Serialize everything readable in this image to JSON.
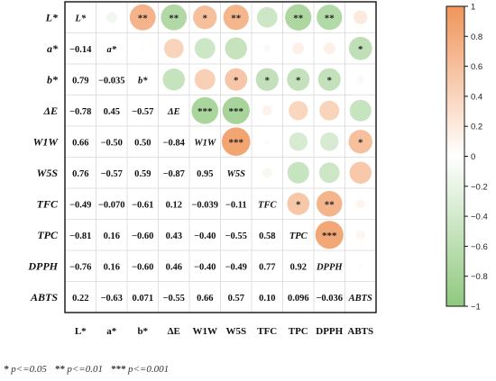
{
  "chart_data": {
    "type": "heatmap",
    "variables": [
      "L*",
      "a*",
      "b*",
      "ΔE",
      "W1W",
      "W5S",
      "TFC",
      "TPC",
      "DPPH",
      "ABTS"
    ],
    "axis_labels": [
      "L*",
      "a*",
      "b*",
      "ΔE",
      "W1W",
      "W5S",
      "TFC",
      "TPC",
      "DPPH",
      "ABTS"
    ],
    "lower_triangle": [
      {
        "row": "a*",
        "values": [
          "−0.14"
        ]
      },
      {
        "row": "b*",
        "values": [
          "0.79",
          "−0.035"
        ]
      },
      {
        "row": "ΔE",
        "values": [
          "−0.78",
          "0.45",
          "−0.57"
        ]
      },
      {
        "row": "W1W",
        "values": [
          "0.66",
          "−0.50",
          "0.50",
          "−0.84"
        ]
      },
      {
        "row": "W5S",
        "values": [
          "0.76",
          "−0.57",
          "0.59",
          "−0.87",
          "0.95"
        ]
      },
      {
        "row": "TFC",
        "values": [
          "−0.49",
          "−0.070",
          "−0.61",
          "0.12",
          "−0.039",
          "−0.11"
        ]
      },
      {
        "row": "TPC",
        "values": [
          "−0.81",
          "0.16",
          "−0.60",
          "0.43",
          "−0.40",
          "−0.55",
          "0.58"
        ]
      },
      {
        "row": "DPPH",
        "values": [
          "−0.76",
          "0.16",
          "−0.60",
          "0.46",
          "−0.40",
          "−0.49",
          "0.77",
          "0.92"
        ]
      },
      {
        "row": "ABTS",
        "values": [
          "0.22",
          "−0.63",
          "0.071",
          "−0.55",
          "0.66",
          "0.57",
          "0.10",
          "0.096",
          "−0.036"
        ]
      }
    ],
    "matrix": [
      [
        1,
        -0.14,
        0.79,
        -0.78,
        0.66,
        0.76,
        -0.49,
        -0.81,
        -0.76,
        0.22
      ],
      [
        -0.14,
        1,
        -0.035,
        0.45,
        -0.5,
        -0.57,
        -0.07,
        0.16,
        0.16,
        -0.63
      ],
      [
        0.79,
        -0.035,
        1,
        -0.57,
        0.5,
        0.59,
        -0.61,
        -0.6,
        -0.6,
        0.071
      ],
      [
        -0.78,
        0.45,
        -0.57,
        1,
        -0.84,
        -0.87,
        0.12,
        0.43,
        0.46,
        -0.55
      ],
      [
        0.66,
        -0.5,
        0.5,
        -0.84,
        1,
        0.95,
        -0.039,
        -0.4,
        -0.4,
        0.66
      ],
      [
        0.76,
        -0.57,
        0.59,
        -0.87,
        0.95,
        1,
        -0.11,
        -0.55,
        -0.49,
        0.57
      ],
      [
        -0.49,
        -0.07,
        -0.61,
        0.12,
        -0.039,
        -0.11,
        1,
        0.58,
        0.77,
        0.1
      ],
      [
        -0.81,
        0.16,
        -0.6,
        0.43,
        -0.4,
        -0.55,
        0.58,
        1,
        0.92,
        0.096
      ],
      [
        -0.76,
        0.16,
        -0.6,
        0.46,
        -0.4,
        -0.49,
        0.77,
        0.92,
        1,
        -0.036
      ],
      [
        0.22,
        -0.63,
        0.071,
        -0.55,
        0.66,
        0.57,
        0.1,
        0.096,
        -0.036,
        1
      ]
    ],
    "significance_upper": [
      [
        "",
        "",
        "**",
        "**",
        "*",
        "**",
        "",
        "**",
        "**",
        ""
      ],
      [
        "",
        "",
        "",
        "",
        "",
        "",
        "",
        "",
        "",
        "*"
      ],
      [
        "",
        "",
        "",
        "",
        "",
        "*",
        "*",
        "*",
        "*",
        ""
      ],
      [
        "",
        "",
        "",
        "",
        "***",
        "***",
        "",
        "",
        "",
        ""
      ],
      [
        "",
        "",
        "",
        "",
        "",
        "***",
        "",
        "",
        "",
        "*"
      ],
      [
        "",
        "",
        "",
        "",
        "",
        "",
        "",
        "",
        "",
        ""
      ],
      [
        "",
        "",
        "",
        "",
        "",
        "",
        "",
        "*",
        "**",
        ""
      ],
      [
        "",
        "",
        "",
        "",
        "",
        "",
        "",
        "",
        "***",
        ""
      ],
      [
        "",
        "",
        "",
        "",
        "",
        "",
        "",
        "",
        "",
        ""
      ],
      [
        "",
        "",
        "",
        "",
        "",
        "",
        "",
        "",
        "",
        ""
      ]
    ],
    "colorbar": {
      "ticks": [
        "1",
        "0.8",
        "0.6",
        "0.4",
        "0.2",
        "0",
        "−0.2",
        "−0.4",
        "−0.6",
        "−0.8",
        "−1"
      ],
      "positive_color": "#f0955a",
      "negative_color": "#8fc87f",
      "neutral_color": "#ffffff"
    },
    "significance_legend": [
      {
        "stars": "*",
        "text": "p<=0.05"
      },
      {
        "stars": "**",
        "text": "p<=0.01"
      },
      {
        "stars": "***",
        "text": "p<=0.001"
      }
    ]
  }
}
